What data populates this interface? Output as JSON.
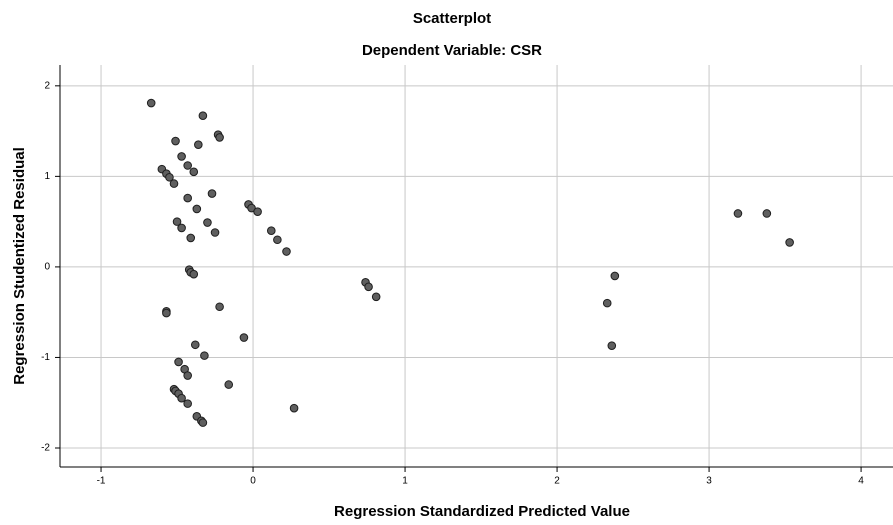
{
  "chart_data": {
    "type": "scatter",
    "title": "Scatterplot",
    "subtitle": "Dependent Variable: CSR",
    "x_label": "Regression Standardized Predicted Value",
    "y_label": "Regression Studentized Residual",
    "color": "#5f5f5f",
    "grid": true,
    "xlim": [
      -1.27,
      4.21
    ],
    "ylim": [
      -2.21,
      2.23
    ],
    "xticks": [
      -1,
      0,
      1,
      2,
      3,
      4
    ],
    "yticks": [
      -2,
      -1,
      0,
      1,
      2
    ],
    "x": [
      -0.67,
      -0.33,
      -0.23,
      -0.22,
      -0.51,
      -0.36,
      -0.47,
      -0.6,
      -0.43,
      -0.57,
      -0.55,
      -0.39,
      -0.52,
      -0.27,
      -0.43,
      -0.03,
      -0.01,
      0.03,
      -0.37,
      -0.5,
      -0.3,
      -0.47,
      0.12,
      -0.25,
      0.16,
      -0.41,
      0.22,
      -0.42,
      -0.41,
      -0.39,
      0.74,
      0.76,
      0.81,
      -0.57,
      -0.57,
      -0.22,
      -0.06,
      -0.38,
      -0.32,
      -0.49,
      -0.45,
      -0.43,
      -0.16,
      -0.52,
      -0.51,
      -0.49,
      -0.47,
      -0.43,
      0.27,
      -0.37,
      -0.34,
      -0.33,
      2.38,
      2.33,
      2.36,
      3.19,
      3.38,
      3.53
    ],
    "y": [
      1.81,
      1.67,
      1.46,
      1.43,
      1.39,
      1.35,
      1.22,
      1.08,
      1.12,
      1.03,
      0.99,
      1.05,
      0.92,
      0.81,
      0.76,
      0.69,
      0.65,
      0.61,
      0.64,
      0.5,
      0.49,
      0.43,
      0.4,
      0.38,
      0.3,
      0.32,
      0.17,
      -0.03,
      -0.06,
      -0.08,
      -0.17,
      -0.22,
      -0.33,
      -0.49,
      -0.51,
      -0.44,
      -0.78,
      -0.86,
      -0.98,
      -1.05,
      -1.13,
      -1.2,
      -1.3,
      -1.35,
      -1.37,
      -1.4,
      -1.45,
      -1.51,
      -1.56,
      -1.65,
      -1.7,
      -1.72,
      -0.1,
      -0.4,
      -0.87,
      0.59,
      0.59,
      0.27
    ]
  }
}
